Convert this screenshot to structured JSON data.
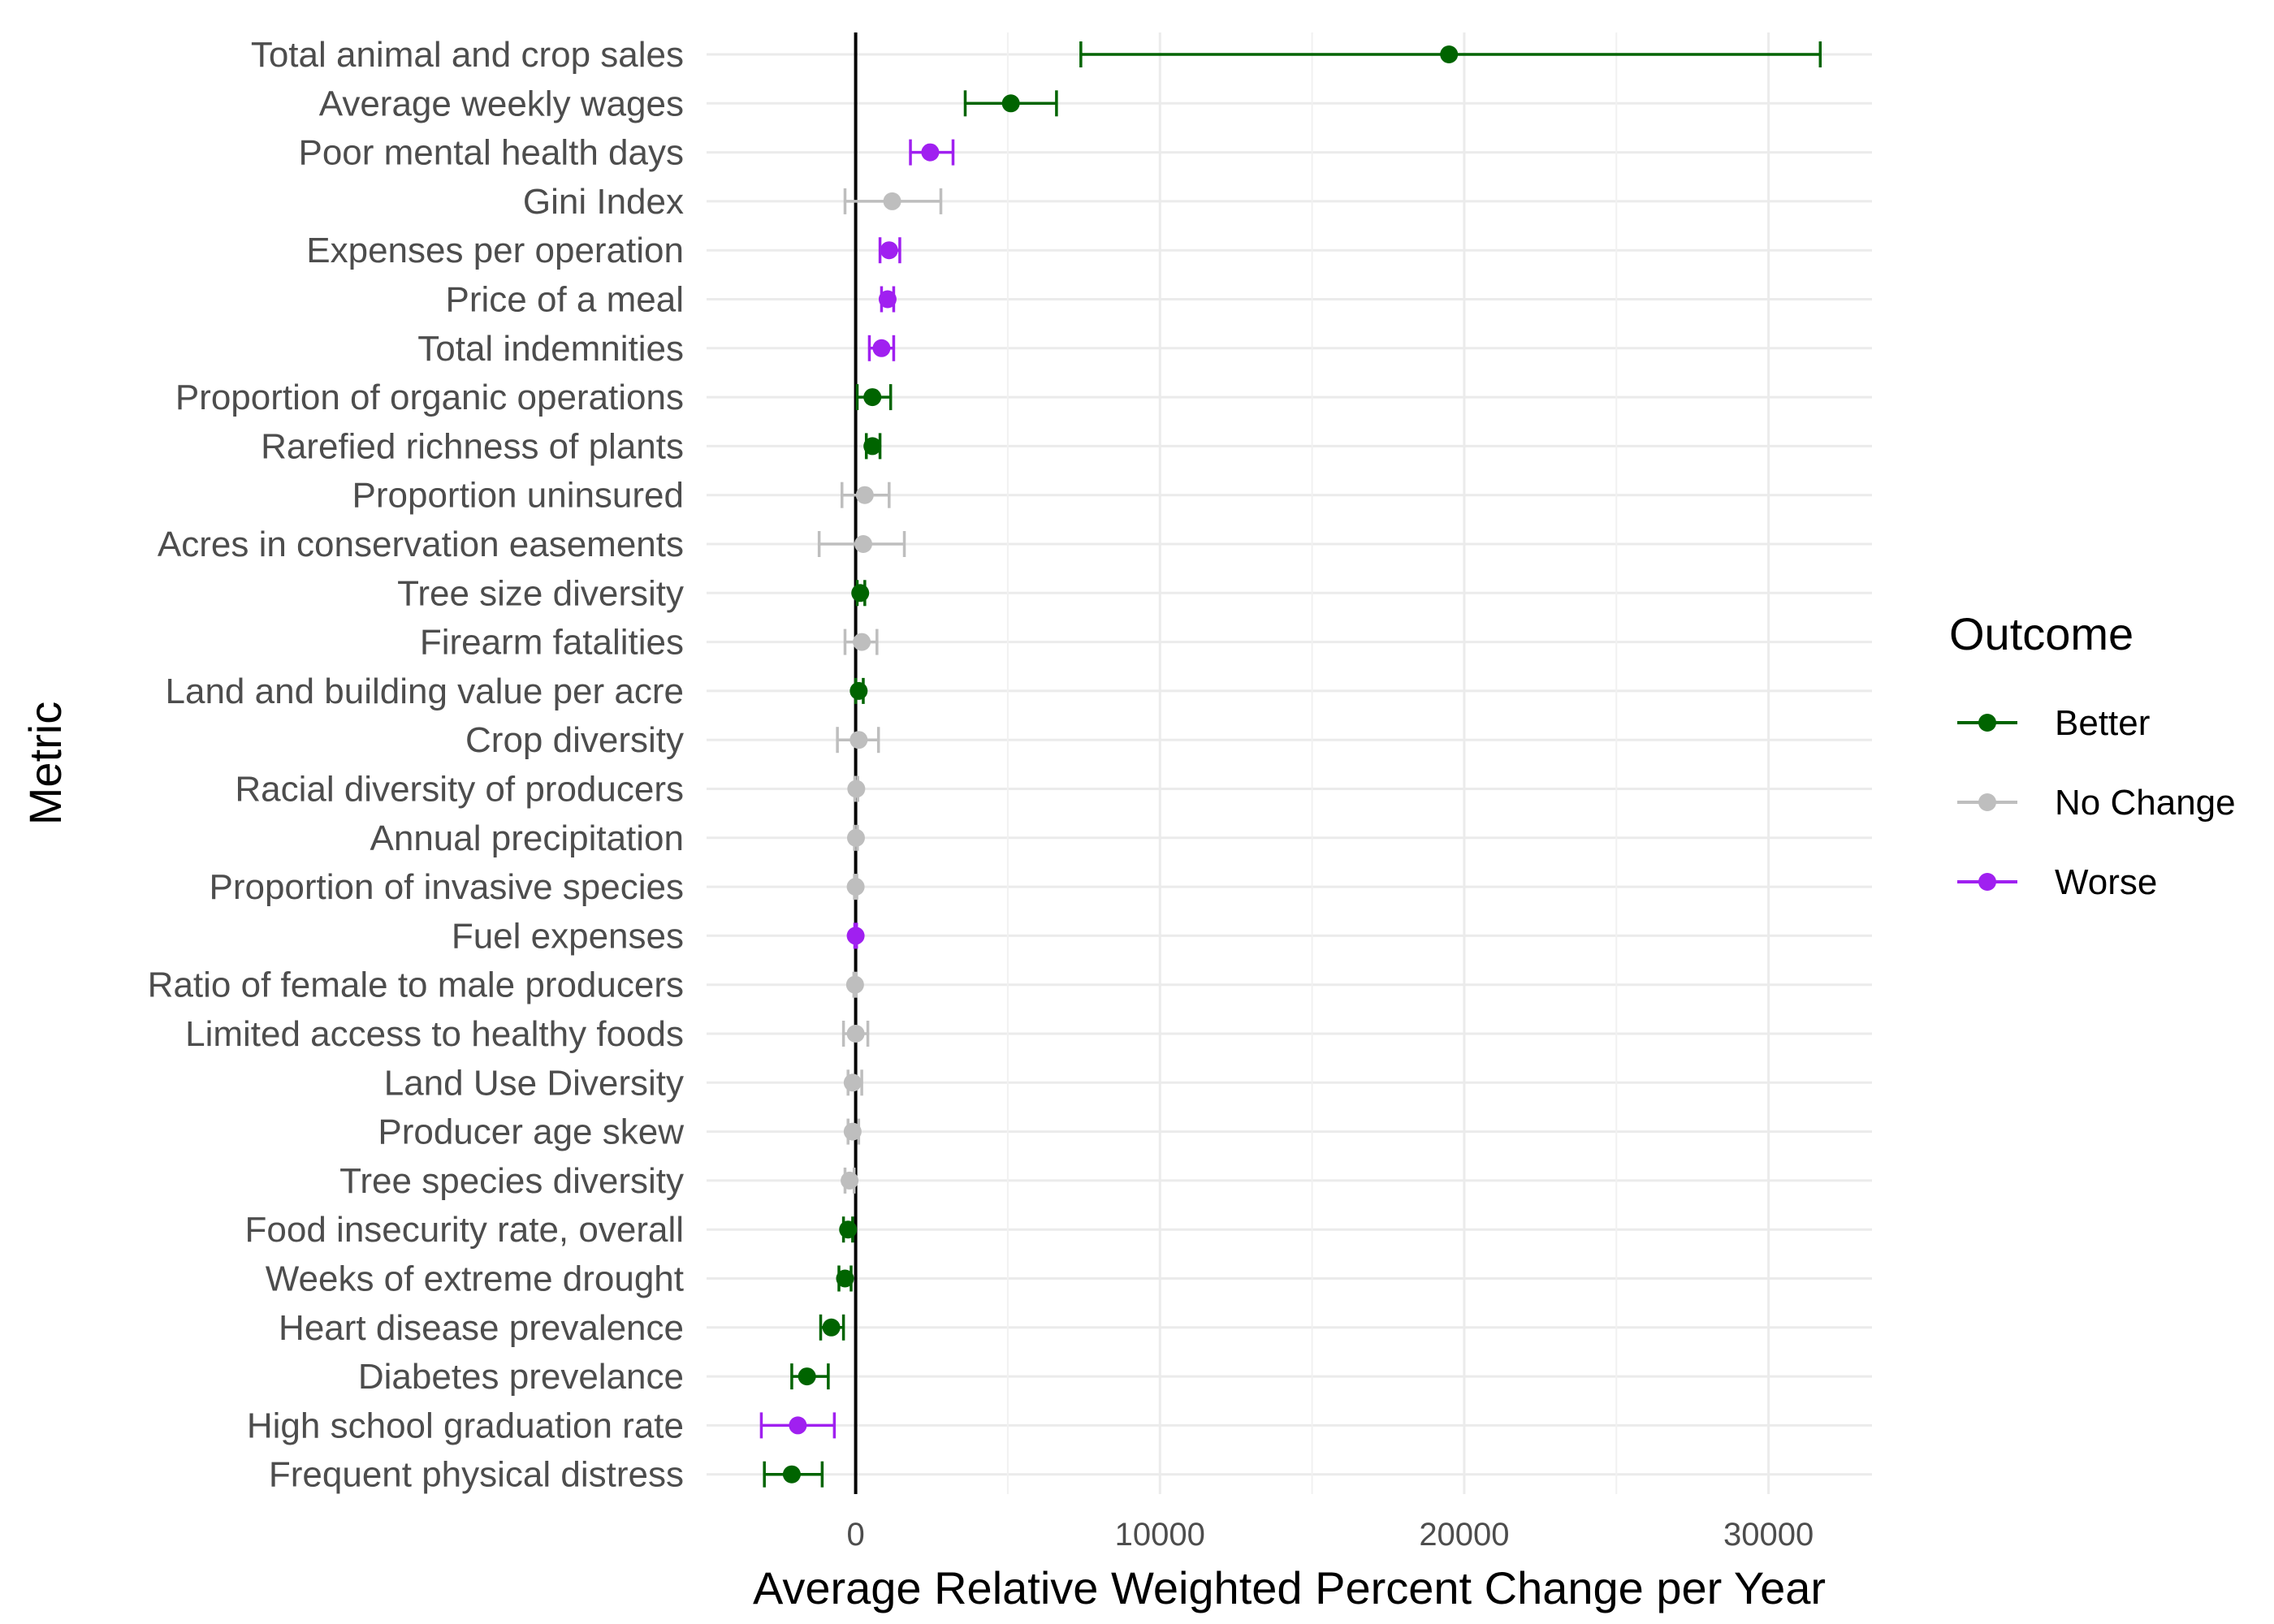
{
  "chart_data": {
    "type": "scatter",
    "subtype": "point-range with error bars",
    "xlabel": "Average Relative Weighted Percent Change per Year",
    "ylabel": "Metric",
    "xlim": [
      -4900,
      33400
    ],
    "xticks": [
      0,
      10000,
      20000,
      30000
    ],
    "grid": true,
    "reference_line_x": 0,
    "legend": {
      "title": "Outcome",
      "position": "right",
      "entries": [
        {
          "name": "Better",
          "color": "#006400"
        },
        {
          "name": "No Change",
          "color": "#bebebe"
        },
        {
          "name": "Worse",
          "color": "#a020f0"
        }
      ]
    },
    "points": [
      {
        "metric": "Total animal and crop sales",
        "value": 19500,
        "low": 7400,
        "high": 31700,
        "outcome": "Better"
      },
      {
        "metric": "Average weekly wages",
        "value": 5100,
        "low": 3600,
        "high": 6600,
        "outcome": "Better"
      },
      {
        "metric": "Poor mental health days",
        "value": 2450,
        "low": 1800,
        "high": 3200,
        "outcome": "Worse"
      },
      {
        "metric": "Gini Index",
        "value": 1200,
        "low": -350,
        "high": 2800,
        "outcome": "No Change"
      },
      {
        "metric": "Expenses per operation",
        "value": 1100,
        "low": 800,
        "high": 1450,
        "outcome": "Worse"
      },
      {
        "metric": "Price of a meal",
        "value": 1050,
        "low": 850,
        "high": 1250,
        "outcome": "Worse"
      },
      {
        "metric": "Total indemnities",
        "value": 850,
        "low": 450,
        "high": 1250,
        "outcome": "Worse"
      },
      {
        "metric": "Proportion of organic operations",
        "value": 550,
        "low": 50,
        "high": 1150,
        "outcome": "Better"
      },
      {
        "metric": "Rarefied richness of plants",
        "value": 550,
        "low": 350,
        "high": 800,
        "outcome": "Better"
      },
      {
        "metric": "Proportion uninsured",
        "value": 300,
        "low": -450,
        "high": 1100,
        "outcome": "No Change"
      },
      {
        "metric": "Acres in conservation easements",
        "value": 250,
        "low": -1200,
        "high": 1600,
        "outcome": "No Change"
      },
      {
        "metric": "Tree size diversity",
        "value": 150,
        "low": 50,
        "high": 300,
        "outcome": "Better"
      },
      {
        "metric": "Firearm fatalities",
        "value": 200,
        "low": -350,
        "high": 700,
        "outcome": "No Change"
      },
      {
        "metric": "Land and building value per acre",
        "value": 100,
        "low": 0,
        "high": 250,
        "outcome": "Better"
      },
      {
        "metric": "Crop diversity",
        "value": 100,
        "low": -600,
        "high": 750,
        "outcome": "No Change"
      },
      {
        "metric": "Racial diversity of producers",
        "value": 20,
        "low": -30,
        "high": 70,
        "outcome": "No Change"
      },
      {
        "metric": "Annual precipitation",
        "value": 10,
        "low": -40,
        "high": 60,
        "outcome": "No Change"
      },
      {
        "metric": "Proportion of invasive species",
        "value": 0,
        "low": -40,
        "high": 40,
        "outcome": "No Change"
      },
      {
        "metric": "Fuel expenses",
        "value": 0,
        "low": -30,
        "high": 30,
        "outcome": "Worse"
      },
      {
        "metric": "Ratio of female to male producers",
        "value": -20,
        "low": -60,
        "high": 20,
        "outcome": "No Change"
      },
      {
        "metric": "Limited access to healthy foods",
        "value": 0,
        "low": -400,
        "high": 400,
        "outcome": "No Change"
      },
      {
        "metric": "Land Use Diversity",
        "value": -100,
        "low": -250,
        "high": 200,
        "outcome": "No Change"
      },
      {
        "metric": "Producer age skew",
        "value": -100,
        "low": -250,
        "high": 100,
        "outcome": "No Change"
      },
      {
        "metric": "Tree species diversity",
        "value": -200,
        "low": -350,
        "high": -50,
        "outcome": "No Change"
      },
      {
        "metric": "Food insecurity rate, overall",
        "value": -250,
        "low": -400,
        "high": -100,
        "outcome": "Better"
      },
      {
        "metric": "Weeks of extreme drought",
        "value": -350,
        "low": -550,
        "high": -150,
        "outcome": "Better"
      },
      {
        "metric": "Heart disease prevalence",
        "value": -800,
        "low": -1150,
        "high": -400,
        "outcome": "Better"
      },
      {
        "metric": "Diabetes prevelance",
        "value": -1600,
        "low": -2100,
        "high": -900,
        "outcome": "Better"
      },
      {
        "metric": "High school graduation rate",
        "value": -1900,
        "low": -3100,
        "high": -700,
        "outcome": "Worse"
      },
      {
        "metric": "Frequent physical distress",
        "value": -2100,
        "low": -3000,
        "high": -1100,
        "outcome": "Better"
      }
    ]
  }
}
